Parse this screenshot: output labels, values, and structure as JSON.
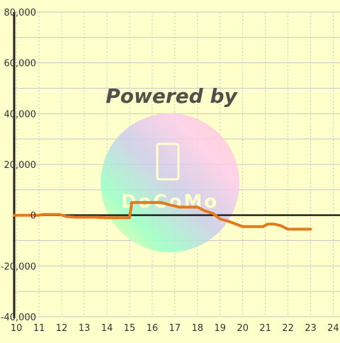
{
  "watermark": {
    "text": "Powered by",
    "logo_text": "DoCoMo"
  },
  "colors": {
    "background": "#ffffcc",
    "grid": "#c8c8c8",
    "axis": "#222222",
    "line": "#e07b20",
    "tick_label": "#333333"
  },
  "chart_data": {
    "type": "line",
    "title": "",
    "xlabel": "",
    "ylabel": "",
    "xlim": [
      9.9,
      24.3
    ],
    "ylim": [
      -40000,
      80000
    ],
    "x_ticks": [
      "10",
      "11",
      "12",
      "13",
      "14",
      "15",
      "16",
      "17",
      "18",
      "19",
      "20",
      "21",
      "22",
      "23",
      "24"
    ],
    "y_ticks": [
      "-40,000",
      "-20,000",
      "0",
      "20,000",
      "40,000",
      "60,000",
      "80,000"
    ],
    "grid": true,
    "series": [
      {
        "color": "#e07b20",
        "points": [
          [
            9.9,
            0
          ],
          [
            11.0,
            0
          ],
          [
            11.2,
            300
          ],
          [
            11.9,
            300
          ],
          [
            12.2,
            -500
          ],
          [
            12.6,
            -800
          ],
          [
            13.5,
            -800
          ],
          [
            13.9,
            -1000
          ],
          [
            14.2,
            -1000
          ],
          [
            15.0,
            -1000
          ],
          [
            15.1,
            5000
          ],
          [
            16.4,
            5000
          ],
          [
            16.9,
            3800
          ],
          [
            17.2,
            3200
          ],
          [
            18.0,
            3200
          ],
          [
            18.3,
            1800
          ],
          [
            18.7,
            600
          ],
          [
            19.0,
            -1500
          ],
          [
            19.4,
            -2500
          ],
          [
            20.0,
            -4500
          ],
          [
            20.9,
            -4500
          ],
          [
            21.1,
            -3500
          ],
          [
            21.4,
            -3500
          ],
          [
            21.7,
            -4200
          ],
          [
            22.0,
            -5500
          ],
          [
            22.5,
            -5500
          ],
          [
            23.0,
            -5500
          ]
        ]
      }
    ]
  }
}
